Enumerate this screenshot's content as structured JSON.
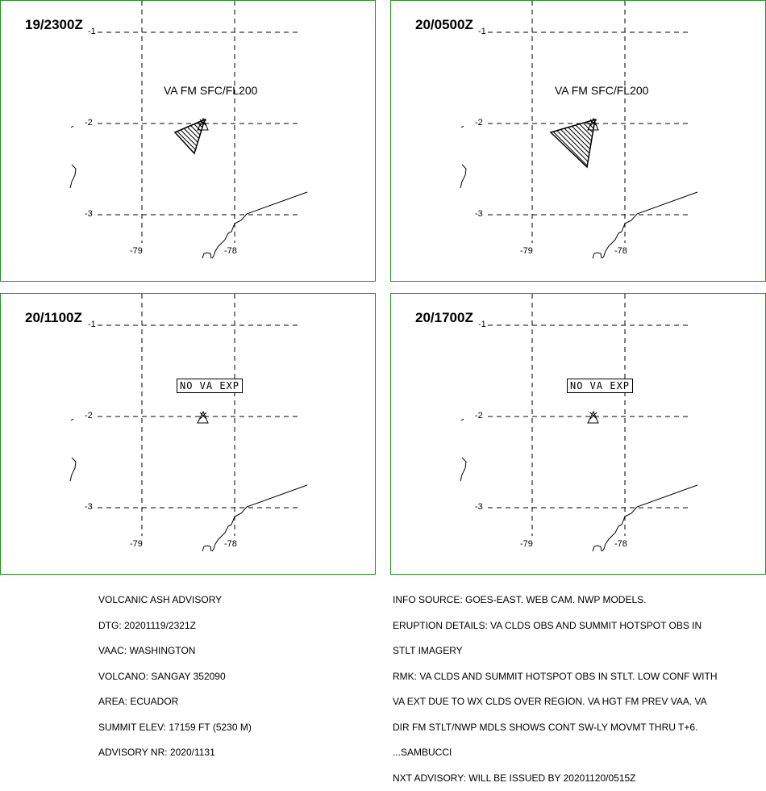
{
  "panels": [
    {
      "time_label": "19/2300Z",
      "ticks": {
        "lat_top": "-1",
        "lat_mid": "-2",
        "lat_bot": "-3",
        "lon_left": "-79",
        "lon_right": "-78"
      },
      "text": "VA FM SFC/FL200",
      "no_va_box": false,
      "ash_polygon": "small"
    },
    {
      "time_label": "20/0500Z",
      "ticks": {
        "lat_top": "-1",
        "lat_mid": "-2",
        "lat_bot": "-3",
        "lon_left": "-79",
        "lon_right": "-78"
      },
      "text": "VA FM SFC/FL200",
      "no_va_box": false,
      "ash_polygon": "large"
    },
    {
      "time_label": "20/1100Z",
      "ticks": {
        "lat_top": "-1",
        "lat_mid": "-2",
        "lat_bot": "-3",
        "lon_left": "-79",
        "lon_right": "-78"
      },
      "text": "NO VA EXP",
      "no_va_box": true,
      "ash_polygon": "none"
    },
    {
      "time_label": "20/1700Z",
      "ticks": {
        "lat_top": "-1",
        "lat_mid": "-2",
        "lat_bot": "-3",
        "lon_left": "-79",
        "lon_right": "-78"
      },
      "text": "NO VA EXP",
      "no_va_box": true,
      "ash_polygon": "none"
    }
  ],
  "advisory_left": [
    "VOLCANIC ASH ADVISORY",
    "DTG: 20201119/2321Z",
    "VAAC: WASHINGTON",
    "VOLCANO: SANGAY 352090",
    "AREA: ECUADOR",
    "SUMMIT ELEV: 17159 FT (5230 M)",
    "ADVISORY NR: 2020/1131"
  ],
  "advisory_right": [
    "INFO SOURCE: GOES-EAST. WEB CAM. NWP MODELS.",
    "ERUPTION DETAILS: VA CLDS OBS AND SUMMIT HOTSPOT OBS IN",
    "STLT IMAGERY",
    "RMK: VA CLDS AND SUMMIT HOTSPOT OBS IN STLT. LOW CONF WITH",
    "VA EXT DUE TO WX CLDS OVER REGION. VA HGT FM PREV VAA. VA",
    "DIR FM STLT/NWP MDLS SHOWS CONT SW-LY MOVMT THRU T+6.",
    "...SAMBUCCI",
    "NXT ADVISORY: WILL BE ISSUED BY 20201120/0515Z"
  ],
  "colors": {
    "border": "#2e8b2e",
    "lines": "#000000"
  }
}
